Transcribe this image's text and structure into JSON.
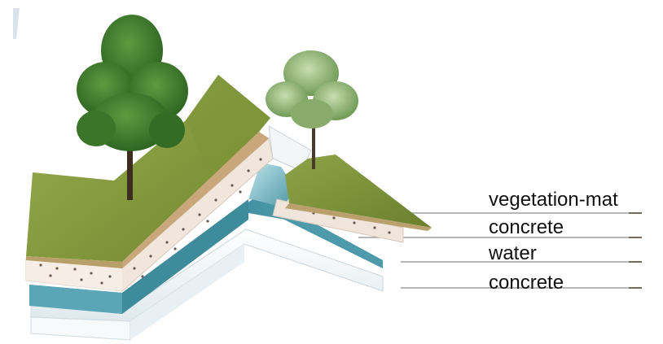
{
  "layers": [
    {
      "label": "vegetation-mat",
      "color": "#8a9a3c"
    },
    {
      "label": "concrete",
      "color": "#efe7de"
    },
    {
      "label": "water",
      "color": "#4f9fae"
    },
    {
      "label": "concrete",
      "color": "#eef4f7"
    }
  ],
  "colors": {
    "grass_light": "#93a54a",
    "grass_dark": "#6f8430",
    "tree_canopy": "#3f7a2e",
    "leader_line": "#8a8a8a"
  }
}
